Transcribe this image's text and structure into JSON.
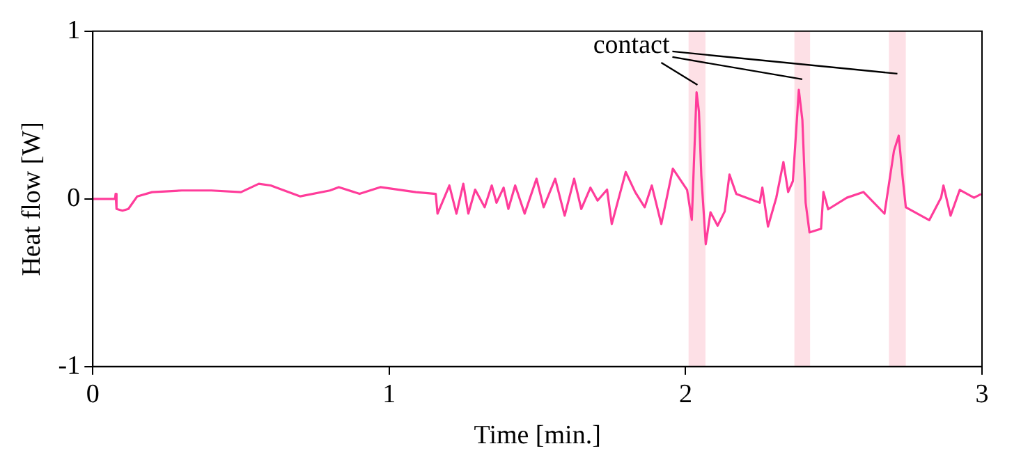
{
  "chart_data": {
    "type": "line",
    "xlabel": "Time [min.]",
    "ylabel": "Heat flow [W]",
    "xlim": [
      0,
      3
    ],
    "xticks": [
      0,
      1,
      2,
      3
    ],
    "ylim": [
      -1,
      1
    ],
    "yticks": [
      -1,
      0,
      1
    ],
    "grid": false,
    "legend": false,
    "marker": "none",
    "line_style": "solid",
    "annotations": [
      {
        "text": "contact",
        "x": 2.04,
        "y": 0.68
      }
    ],
    "bands": [
      {
        "axis": "x",
        "from": 2.01,
        "to": 2.067,
        "color": "#fde0e6"
      },
      {
        "axis": "x",
        "from": 2.367,
        "to": 2.42,
        "color": "#fde0e6"
      },
      {
        "axis": "x",
        "from": 2.686,
        "to": 2.743,
        "color": "#fde0e6"
      }
    ],
    "series": [
      {
        "color": "#ff3c9a",
        "x": [
          0,
          0.075,
          0.077,
          0.08,
          0.1,
          0.12,
          0.15,
          0.2,
          0.3,
          0.4,
          0.5,
          0.56,
          0.6,
          0.63,
          0.7,
          0.8,
          0.83,
          0.9,
          0.97,
          1.09,
          1.157,
          1.163,
          1.203,
          1.227,
          1.25,
          1.267,
          1.29,
          1.322,
          1.346,
          1.362,
          1.386,
          1.402,
          1.425,
          1.457,
          1.497,
          1.521,
          1.56,
          1.592,
          1.624,
          1.648,
          1.679,
          1.703,
          1.735,
          1.751,
          1.798,
          1.83,
          1.862,
          1.886,
          1.918,
          1.957,
          2.005,
          2.021,
          2.037,
          2.045,
          2.053,
          2.068,
          2.084,
          2.108,
          2.132,
          2.148,
          2.171,
          2.25,
          2.259,
          2.278,
          2.306,
          2.33,
          2.346,
          2.362,
          2.382,
          2.394,
          2.405,
          2.418,
          2.457,
          2.465,
          2.481,
          2.544,
          2.6,
          2.671,
          2.703,
          2.719,
          2.732,
          2.743,
          2.822,
          2.862,
          2.87,
          2.894,
          2.925,
          2.973,
          2.997
        ],
        "values": [
          0,
          0,
          0.03,
          -0.06,
          -0.07,
          -0.06,
          0.015,
          0.04,
          0.05,
          0.05,
          0.04,
          0.09,
          0.08,
          0.06,
          0.015,
          0.05,
          0.07,
          0.03,
          0.07,
          0.04,
          0.03,
          -0.088,
          0.08,
          -0.088,
          0.09,
          -0.088,
          0.055,
          -0.05,
          0.08,
          -0.023,
          0.067,
          -0.06,
          0.08,
          -0.088,
          0.12,
          -0.05,
          0.12,
          -0.1,
          0.12,
          -0.06,
          0.067,
          -0.01,
          0.055,
          -0.15,
          0.16,
          0.04,
          -0.05,
          0.08,
          -0.15,
          0.18,
          0.054,
          -0.125,
          0.636,
          0.52,
          0.14,
          -0.27,
          -0.08,
          -0.16,
          -0.075,
          0.145,
          0.029,
          -0.023,
          0.067,
          -0.165,
          0.007,
          0.22,
          0.041,
          0.106,
          0.65,
          0.47,
          -0.023,
          -0.2,
          -0.178,
          0.041,
          -0.062,
          0.007,
          0.041,
          -0.088,
          0.287,
          0.377,
          0.132,
          -0.05,
          -0.127,
          0.007,
          0.08,
          -0.1,
          0.054,
          0.007,
          0.029
        ]
      }
    ]
  }
}
